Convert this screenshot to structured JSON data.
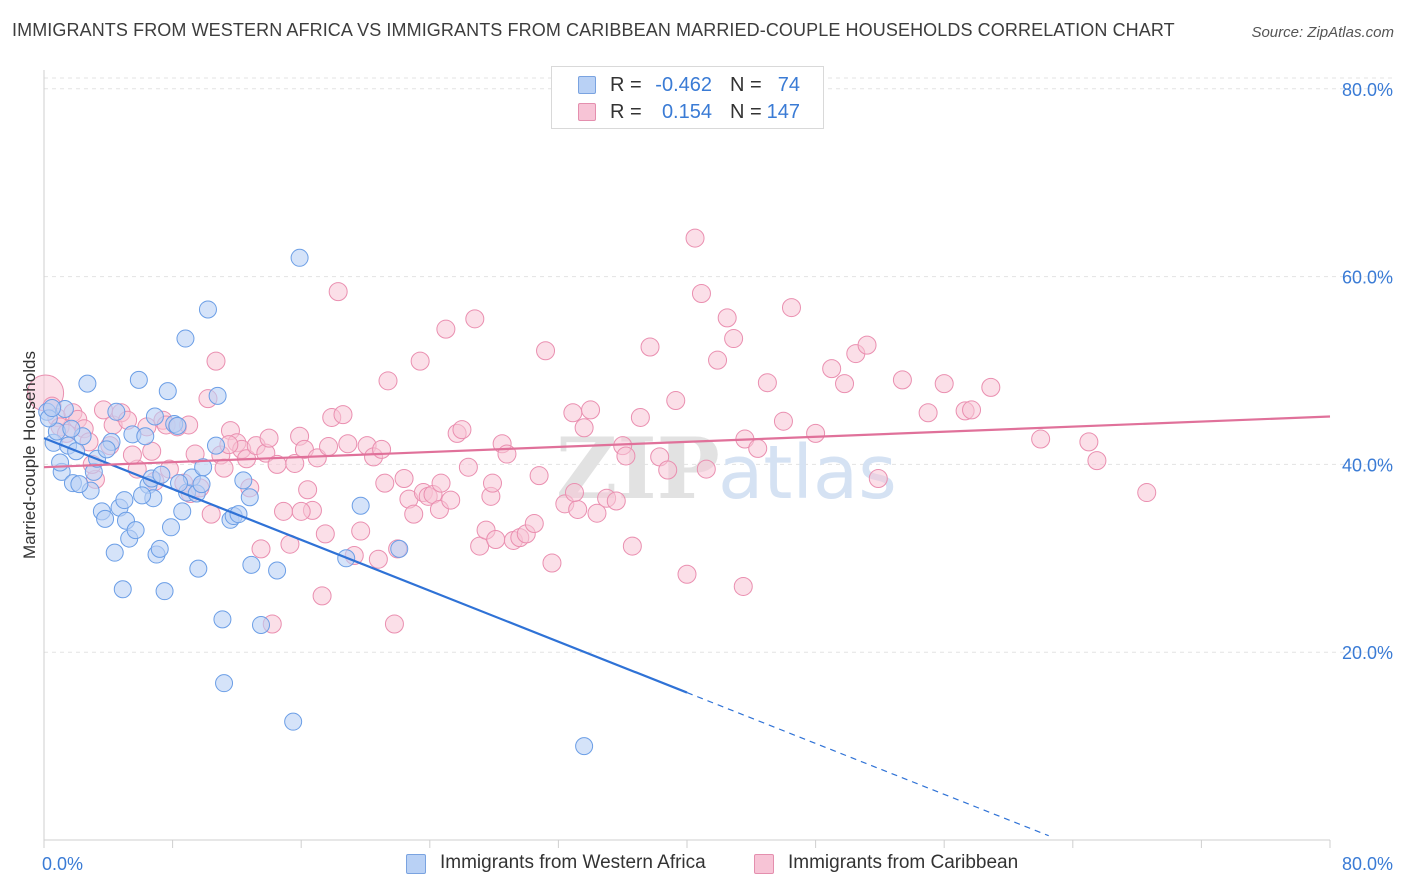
{
  "title": "IMMIGRANTS FROM WESTERN AFRICA VS IMMIGRANTS FROM CARIBBEAN MARRIED-COUPLE HOUSEHOLDS CORRELATION CHART",
  "source": "Source: ZipAtlas.com",
  "watermark": {
    "zip": "ZIP",
    "atlas": "atlas"
  },
  "legend": {
    "r_label": "R =",
    "n_label": "N =",
    "rows": [
      {
        "r": "-0.462",
        "n": "74",
        "color": "#6b9ee6"
      },
      {
        "r": "0.154",
        "n": "147",
        "color": "#ea8fb0"
      }
    ]
  },
  "chart_data": {
    "type": "scatter",
    "title": "IMMIGRANTS FROM WESTERN AFRICA VS IMMIGRANTS FROM CARIBBEAN MARRIED-COUPLE HOUSEHOLDS CORRELATION CHART",
    "xlabel": "",
    "ylabel": "Married-couple Households",
    "xlim": [
      0,
      80
    ],
    "ylim": [
      0,
      82
    ],
    "x_tick_labels": [
      "0.0%",
      "80.0%"
    ],
    "y_ticks": [
      20,
      40,
      60,
      80
    ],
    "y_tick_labels": [
      "20.0%",
      "40.0%",
      "60.0%",
      "80.0%"
    ],
    "grid": true,
    "legend_position": "top-center",
    "series": [
      {
        "name": "Immigrants from Western Africa",
        "color": "#6b9ee6",
        "fill": "#b9d1f5",
        "R": -0.462,
        "N": 74,
        "trend": {
          "x0": 0,
          "y0": 42.8,
          "x1": 40,
          "y1": 15.7,
          "dash_to_x": 62.5
        },
        "points": [
          [
            0.2,
            45.6
          ],
          [
            0.6,
            42.3
          ],
          [
            0.8,
            43.5
          ],
          [
            1.1,
            39.2
          ],
          [
            1.3,
            45.9
          ],
          [
            1.5,
            42.0
          ],
          [
            1.8,
            38.0
          ],
          [
            2.0,
            41.4
          ],
          [
            2.4,
            43.0
          ],
          [
            2.7,
            48.6
          ],
          [
            2.9,
            37.2
          ],
          [
            3.1,
            39.2
          ],
          [
            3.3,
            40.6
          ],
          [
            3.6,
            35.0
          ],
          [
            3.8,
            34.2
          ],
          [
            4.2,
            42.4
          ],
          [
            4.5,
            45.6
          ],
          [
            4.7,
            35.4
          ],
          [
            4.9,
            26.7
          ],
          [
            5.1,
            34.0
          ],
          [
            5.3,
            32.1
          ],
          [
            5.5,
            43.2
          ],
          [
            5.7,
            33.0
          ],
          [
            5.9,
            49.0
          ],
          [
            6.3,
            43.0
          ],
          [
            6.5,
            37.8
          ],
          [
            6.7,
            38.5
          ],
          [
            6.8,
            36.4
          ],
          [
            7.0,
            30.4
          ],
          [
            7.3,
            38.9
          ],
          [
            7.5,
            26.5
          ],
          [
            7.7,
            47.8
          ],
          [
            7.9,
            33.3
          ],
          [
            8.1,
            44.3
          ],
          [
            8.3,
            44.1
          ],
          [
            8.6,
            35.0
          ],
          [
            8.8,
            53.4
          ],
          [
            8.9,
            37.0
          ],
          [
            9.2,
            38.6
          ],
          [
            9.5,
            36.9
          ],
          [
            9.6,
            28.9
          ],
          [
            9.9,
            39.7
          ],
          [
            10.2,
            56.5
          ],
          [
            10.7,
            42.0
          ],
          [
            10.8,
            47.3
          ],
          [
            11.1,
            23.5
          ],
          [
            11.2,
            16.7
          ],
          [
            11.6,
            34.1
          ],
          [
            11.8,
            34.5
          ],
          [
            12.4,
            38.3
          ],
          [
            12.8,
            36.5
          ],
          [
            12.9,
            29.3
          ],
          [
            13.5,
            22.9
          ],
          [
            14.5,
            28.7
          ],
          [
            15.5,
            12.6
          ],
          [
            15.9,
            62.0
          ],
          [
            18.8,
            30.0
          ],
          [
            19.7,
            35.6
          ],
          [
            22.1,
            31.0
          ],
          [
            33.6,
            10.0
          ],
          [
            0.3,
            44.9
          ],
          [
            1.0,
            40.2
          ],
          [
            2.2,
            37.9
          ],
          [
            3.9,
            41.6
          ],
          [
            6.1,
            36.7
          ],
          [
            7.2,
            31.0
          ],
          [
            8.4,
            38.0
          ],
          [
            9.8,
            37.9
          ],
          [
            4.4,
            30.6
          ],
          [
            5.0,
            36.2
          ],
          [
            0.5,
            46.0
          ],
          [
            1.7,
            43.8
          ],
          [
            6.9,
            45.1
          ],
          [
            12.1,
            34.7
          ]
        ]
      },
      {
        "name": "Immigrants from Caribbean",
        "color": "#ea8fb0",
        "fill": "#f7c4d6",
        "R": 0.154,
        "N": 147,
        "trend": {
          "x0": 0,
          "y0": 39.7,
          "x1": 80,
          "y1": 45.1
        },
        "points": [
          [
            0.1,
            47.6
          ],
          [
            0.5,
            46.2
          ],
          [
            0.8,
            45.0
          ],
          [
            1.0,
            44.0
          ],
          [
            1.4,
            43.3
          ],
          [
            1.8,
            45.5
          ],
          [
            2.1,
            44.8
          ],
          [
            2.5,
            43.8
          ],
          [
            3.2,
            38.4
          ],
          [
            3.7,
            45.8
          ],
          [
            4.1,
            42.0
          ],
          [
            4.3,
            44.2
          ],
          [
            4.8,
            45.5
          ],
          [
            5.2,
            44.7
          ],
          [
            5.8,
            39.5
          ],
          [
            6.4,
            44.0
          ],
          [
            6.7,
            41.4
          ],
          [
            6.9,
            38.2
          ],
          [
            7.4,
            44.7
          ],
          [
            7.6,
            44.2
          ],
          [
            7.8,
            39.5
          ],
          [
            8.3,
            44.0
          ],
          [
            8.7,
            38.0
          ],
          [
            9.1,
            36.9
          ],
          [
            9.4,
            41.1
          ],
          [
            9.7,
            37.5
          ],
          [
            10.2,
            47.0
          ],
          [
            10.4,
            34.7
          ],
          [
            10.7,
            51.0
          ],
          [
            11.0,
            41.0
          ],
          [
            11.2,
            39.6
          ],
          [
            11.6,
            43.6
          ],
          [
            12.0,
            42.3
          ],
          [
            12.3,
            41.6
          ],
          [
            12.6,
            40.6
          ],
          [
            12.8,
            37.5
          ],
          [
            13.2,
            42.0
          ],
          [
            13.5,
            31.0
          ],
          [
            13.8,
            41.2
          ],
          [
            14.0,
            42.8
          ],
          [
            14.2,
            23.0
          ],
          [
            14.5,
            40.0
          ],
          [
            14.9,
            35.0
          ],
          [
            15.3,
            31.5
          ],
          [
            15.6,
            40.1
          ],
          [
            15.9,
            43.0
          ],
          [
            16.2,
            41.6
          ],
          [
            16.4,
            37.3
          ],
          [
            16.7,
            35.1
          ],
          [
            17.0,
            40.7
          ],
          [
            17.3,
            26.0
          ],
          [
            17.5,
            32.6
          ],
          [
            17.7,
            41.9
          ],
          [
            17.9,
            45.0
          ],
          [
            18.3,
            58.4
          ],
          [
            18.6,
            45.3
          ],
          [
            18.9,
            42.2
          ],
          [
            19.3,
            30.3
          ],
          [
            19.7,
            32.9
          ],
          [
            20.1,
            42.0
          ],
          [
            20.5,
            40.8
          ],
          [
            20.8,
            29.9
          ],
          [
            21.0,
            41.6
          ],
          [
            21.4,
            48.9
          ],
          [
            21.8,
            23.0
          ],
          [
            22.0,
            31.0
          ],
          [
            22.4,
            38.5
          ],
          [
            22.7,
            36.3
          ],
          [
            23.0,
            34.7
          ],
          [
            23.4,
            51.0
          ],
          [
            23.6,
            37.0
          ],
          [
            23.9,
            36.6
          ],
          [
            24.2,
            36.8
          ],
          [
            24.6,
            35.2
          ],
          [
            25.0,
            54.4
          ],
          [
            25.3,
            36.2
          ],
          [
            25.7,
            43.3
          ],
          [
            26.0,
            43.7
          ],
          [
            26.4,
            39.7
          ],
          [
            26.8,
            55.5
          ],
          [
            27.1,
            31.3
          ],
          [
            27.5,
            33.0
          ],
          [
            27.8,
            36.6
          ],
          [
            28.1,
            32.0
          ],
          [
            28.5,
            42.2
          ],
          [
            28.8,
            41.1
          ],
          [
            29.2,
            31.9
          ],
          [
            29.6,
            32.2
          ],
          [
            30.0,
            32.6
          ],
          [
            30.5,
            33.7
          ],
          [
            30.8,
            38.8
          ],
          [
            31.2,
            52.1
          ],
          [
            31.6,
            29.5
          ],
          [
            32.4,
            35.8
          ],
          [
            32.9,
            45.5
          ],
          [
            33.2,
            35.2
          ],
          [
            33.6,
            43.9
          ],
          [
            34.0,
            45.8
          ],
          [
            34.4,
            34.8
          ],
          [
            35.0,
            36.4
          ],
          [
            35.6,
            36.1
          ],
          [
            36.0,
            42.0
          ],
          [
            36.6,
            31.3
          ],
          [
            37.1,
            45.0
          ],
          [
            37.7,
            52.5
          ],
          [
            38.3,
            40.8
          ],
          [
            38.8,
            39.4
          ],
          [
            39.3,
            46.8
          ],
          [
            40.0,
            28.3
          ],
          [
            40.5,
            64.1
          ],
          [
            40.9,
            58.2
          ],
          [
            41.2,
            39.5
          ],
          [
            41.9,
            51.1
          ],
          [
            42.5,
            55.6
          ],
          [
            42.9,
            53.4
          ],
          [
            43.6,
            42.7
          ],
          [
            44.4,
            41.7
          ],
          [
            45.0,
            48.7
          ],
          [
            46.5,
            56.7
          ],
          [
            48.0,
            43.3
          ],
          [
            49.0,
            50.2
          ],
          [
            49.8,
            48.6
          ],
          [
            50.5,
            51.8
          ],
          [
            51.2,
            52.7
          ],
          [
            51.9,
            38.5
          ],
          [
            53.4,
            49.0
          ],
          [
            55.0,
            45.5
          ],
          [
            56.0,
            48.6
          ],
          [
            57.3,
            45.7
          ],
          [
            57.7,
            45.8
          ],
          [
            58.9,
            48.2
          ],
          [
            62.0,
            42.7
          ],
          [
            65.0,
            42.4
          ],
          [
            65.5,
            40.4
          ],
          [
            68.6,
            37.0
          ],
          [
            3.0,
            40.0
          ],
          [
            5.5,
            41.0
          ],
          [
            9.0,
            44.2
          ],
          [
            11.5,
            42.1
          ],
          [
            16.0,
            35.0
          ],
          [
            21.2,
            38.0
          ],
          [
            24.7,
            38.0
          ],
          [
            27.9,
            38.0
          ],
          [
            33.0,
            37.0
          ],
          [
            36.2,
            40.9
          ],
          [
            43.5,
            27.0
          ],
          [
            46.0,
            44.6
          ],
          [
            2.8,
            42.4
          ]
        ]
      }
    ]
  },
  "bottom_legend": [
    {
      "label": "Immigrants from Western Africa"
    },
    {
      "label": "Immigrants from Caribbean"
    }
  ]
}
